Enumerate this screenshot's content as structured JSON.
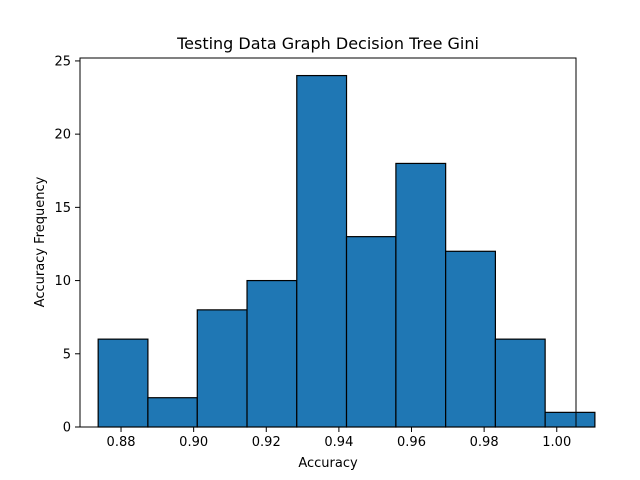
{
  "chart_data": {
    "type": "bar",
    "title": "Testing Data Graph Decision Tree Gini",
    "xlabel": "Accuracy",
    "ylabel": "Accuracy Frequency",
    "xlim": [
      0.8687,
      1.0053
    ],
    "ylim": [
      0,
      25.2
    ],
    "bin_edges": [
      0.8737,
      0.8874,
      0.901,
      0.9147,
      0.9284,
      0.9421,
      0.9557,
      0.9694,
      0.9831,
      0.9968,
      1.0105
    ],
    "values": [
      6,
      2,
      8,
      10,
      24,
      13,
      18,
      12,
      6,
      1
    ],
    "xticks": [
      0.88,
      0.9,
      0.92,
      0.94,
      0.96,
      0.98,
      1.0
    ],
    "xtick_labels": [
      "0.88",
      "0.90",
      "0.92",
      "0.94",
      "0.96",
      "0.98",
      "1.00"
    ],
    "yticks": [
      0,
      5,
      10,
      15,
      20,
      25
    ],
    "ytick_labels": [
      "0",
      "5",
      "10",
      "15",
      "20",
      "25"
    ],
    "grid": false,
    "legend": "none",
    "bar_color": "#1f77b4",
    "edge_color": "#000000"
  }
}
